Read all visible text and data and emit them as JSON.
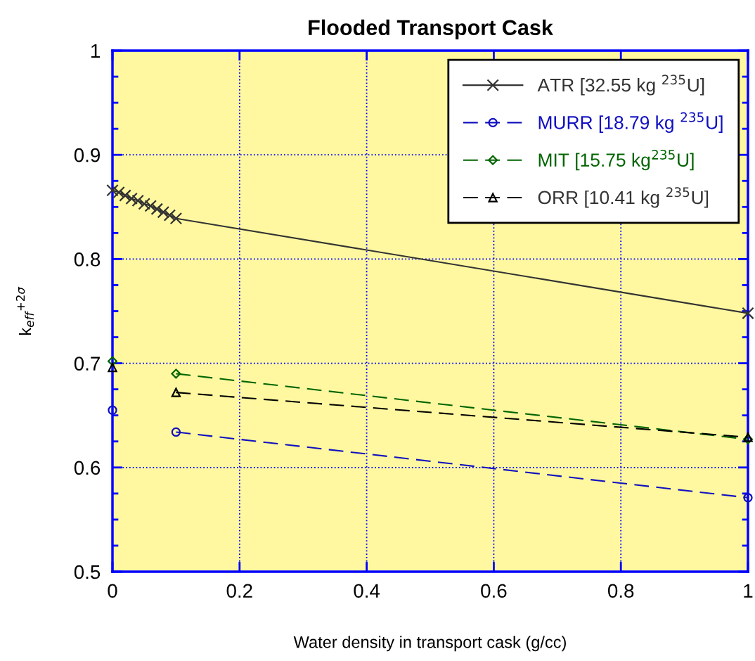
{
  "chart_data": {
    "type": "line",
    "title": "Flooded Transport Cask",
    "xlabel": "Water density in transport cask (g/cc)",
    "ylabel": "k$_{eff}$$^{+2σ}$",
    "xlim": [
      0,
      1
    ],
    "ylim": [
      0.5,
      1
    ],
    "xticks": [
      0,
      0.2,
      0.4,
      0.6,
      0.8,
      1
    ],
    "yticks": [
      0.5,
      0.6,
      0.7,
      0.8,
      0.9,
      1
    ],
    "grid": true,
    "legend": "top right",
    "series": [
      {
        "name": "ATR [32.55 kg $^{235}$U]",
        "color": "#333333",
        "marker": "cross",
        "line_style": "solid",
        "x": [
          0,
          0.01,
          0.02,
          0.03,
          0.04,
          0.05,
          0.06,
          0.07,
          0.08,
          0.09,
          0.1,
          1
        ],
        "values": [
          0.866,
          0.864,
          0.861,
          0.858,
          0.856,
          0.853,
          0.851,
          0.848,
          0.845,
          0.842,
          0.839,
          0.748
        ]
      },
      {
        "name": "MURR [18.79 kg $^{235}$U]",
        "color": "#1010c0",
        "marker": "circle",
        "line_style": "dashed",
        "x": [
          0,
          0.05,
          0.1,
          1
        ],
        "values": [
          0.655,
          null,
          0.634,
          0.571
        ]
      },
      {
        "name": "MIT [15.75 kg$^{235}$U]",
        "color": "#006400",
        "marker": "diamond",
        "line_style": "dashed",
        "x": [
          0,
          0.05,
          0.1,
          1
        ],
        "values": [
          0.702,
          null,
          0.69,
          0.627
        ]
      },
      {
        "name": "ORR [10.41 kg $^{235}$U]",
        "color": "#000000",
        "marker": "triangle",
        "line_style": "dashed",
        "x": [
          0,
          0.05,
          0.1,
          1
        ],
        "values": [
          0.696,
          null,
          0.672,
          0.629
        ]
      }
    ]
  }
}
